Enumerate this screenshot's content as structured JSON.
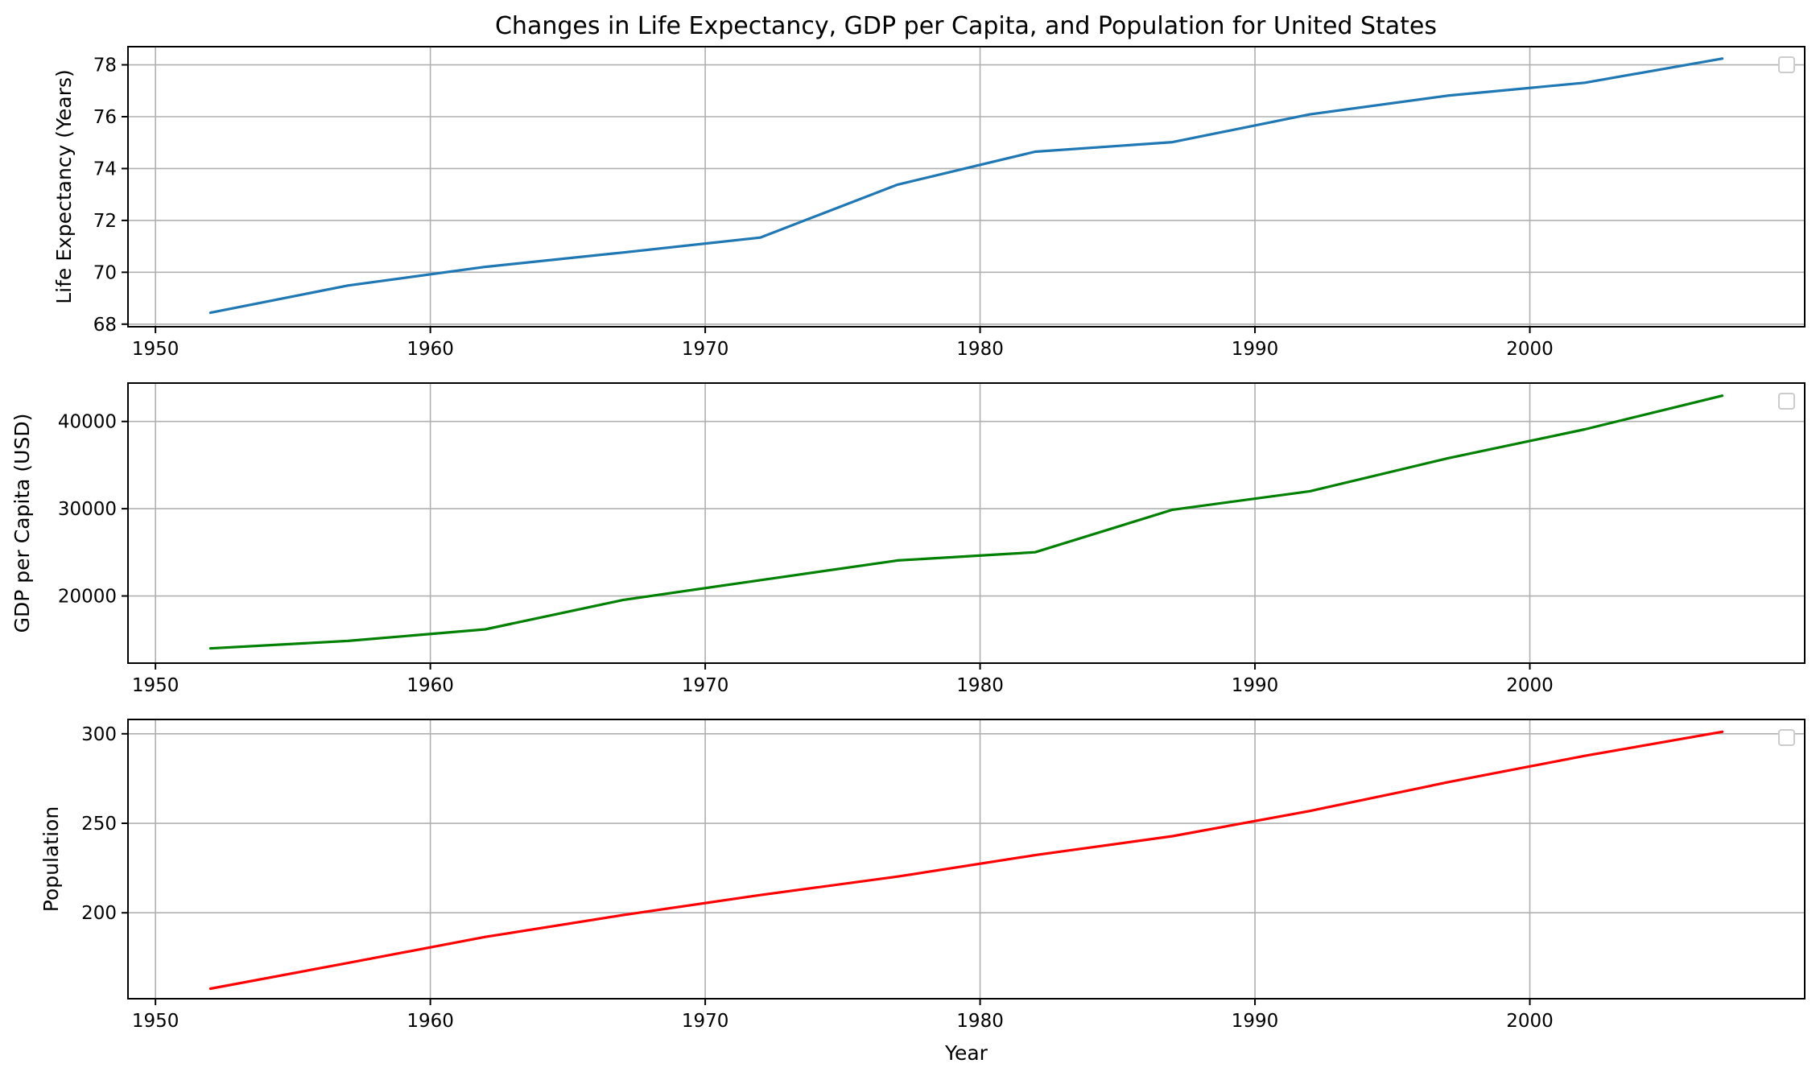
{
  "chart_data": {
    "type": "line",
    "title": "Changes in Life Expectancy, GDP per Capita, and Population for United States",
    "x": [
      1952,
      1957,
      1962,
      1967,
      1972,
      1977,
      1982,
      1987,
      1992,
      1997,
      2002,
      2007
    ],
    "xlim": [
      1949,
      2010
    ],
    "xticks": [
      "1950",
      "1960",
      "1970",
      "1980",
      "1990",
      "2000"
    ],
    "panels": [
      {
        "ylabel": "Life Expectancy (Years)",
        "xlabel": "",
        "ylim": [
          67.9,
          78.7
        ],
        "yticks": [
          "68",
          "70",
          "72",
          "74",
          "76",
          "78"
        ],
        "grid": true,
        "legend": "top-right",
        "series": [
          {
            "color": "#1f77b4",
            "values": [
              68.44,
              69.49,
              70.21,
              70.76,
              71.34,
              73.38,
              74.65,
              75.02,
              76.09,
              76.81,
              77.31,
              78.24
            ]
          }
        ]
      },
      {
        "ylabel": "GDP per Capita (USD)",
        "xlabel": "",
        "ylim": [
          12300,
          44400
        ],
        "yticks": [
          "20000",
          "30000",
          "40000"
        ],
        "grid": true,
        "legend": "top-right",
        "series": [
          {
            "color": "#008000",
            "values": [
              13990,
              14847,
              16173,
              19530,
              21806,
              24073,
              25010,
              29884,
              32004,
              35767,
              39097,
              42952
            ]
          }
        ]
      },
      {
        "ylabel": "Population",
        "xlabel": "Year",
        "ylim": [
          152,
          308
        ],
        "yticks": [
          "200",
          "250",
          "300"
        ],
        "grid": true,
        "legend": "top-right",
        "series": [
          {
            "color": "#ff0000",
            "values": [
              157.6,
              171.98,
              186.54,
              198.71,
              209.9,
              220.24,
              232.19,
              242.8,
              256.89,
              272.91,
              287.68,
              301.14
            ]
          }
        ]
      }
    ]
  }
}
